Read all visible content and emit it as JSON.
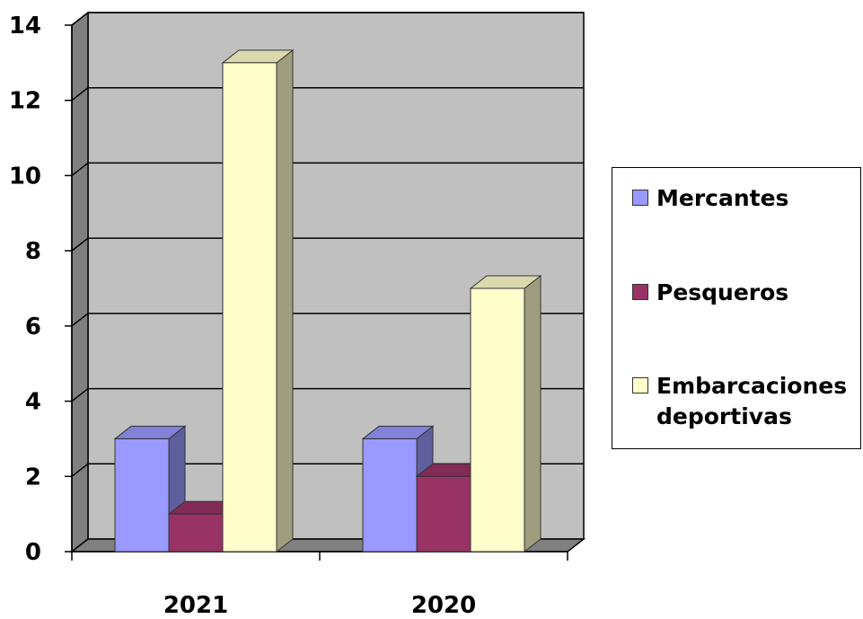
{
  "chart_data": {
    "type": "bar",
    "categories": [
      "2021",
      "2020"
    ],
    "series": [
      {
        "name": "Mercantes",
        "values": [
          3,
          3
        ],
        "color": "#9999ff"
      },
      {
        "name": "Pesqueros",
        "values": [
          1,
          2
        ],
        "color": "#993366"
      },
      {
        "name": "Embarcaciones deportivas",
        "values": [
          13,
          7
        ],
        "color": "#ffffcc"
      }
    ],
    "ylim": [
      0,
      14
    ],
    "yticks": [
      "0",
      "2",
      "4",
      "6",
      "8",
      "10",
      "12",
      "14"
    ],
    "title": "",
    "xlabel": "",
    "ylabel": "",
    "grid": true,
    "three_d": true,
    "legend_position": "right",
    "colors": {
      "wall": "#c0c0c0",
      "side_wall": "#808080",
      "floor": "#808080",
      "gridline": "#000000"
    }
  }
}
